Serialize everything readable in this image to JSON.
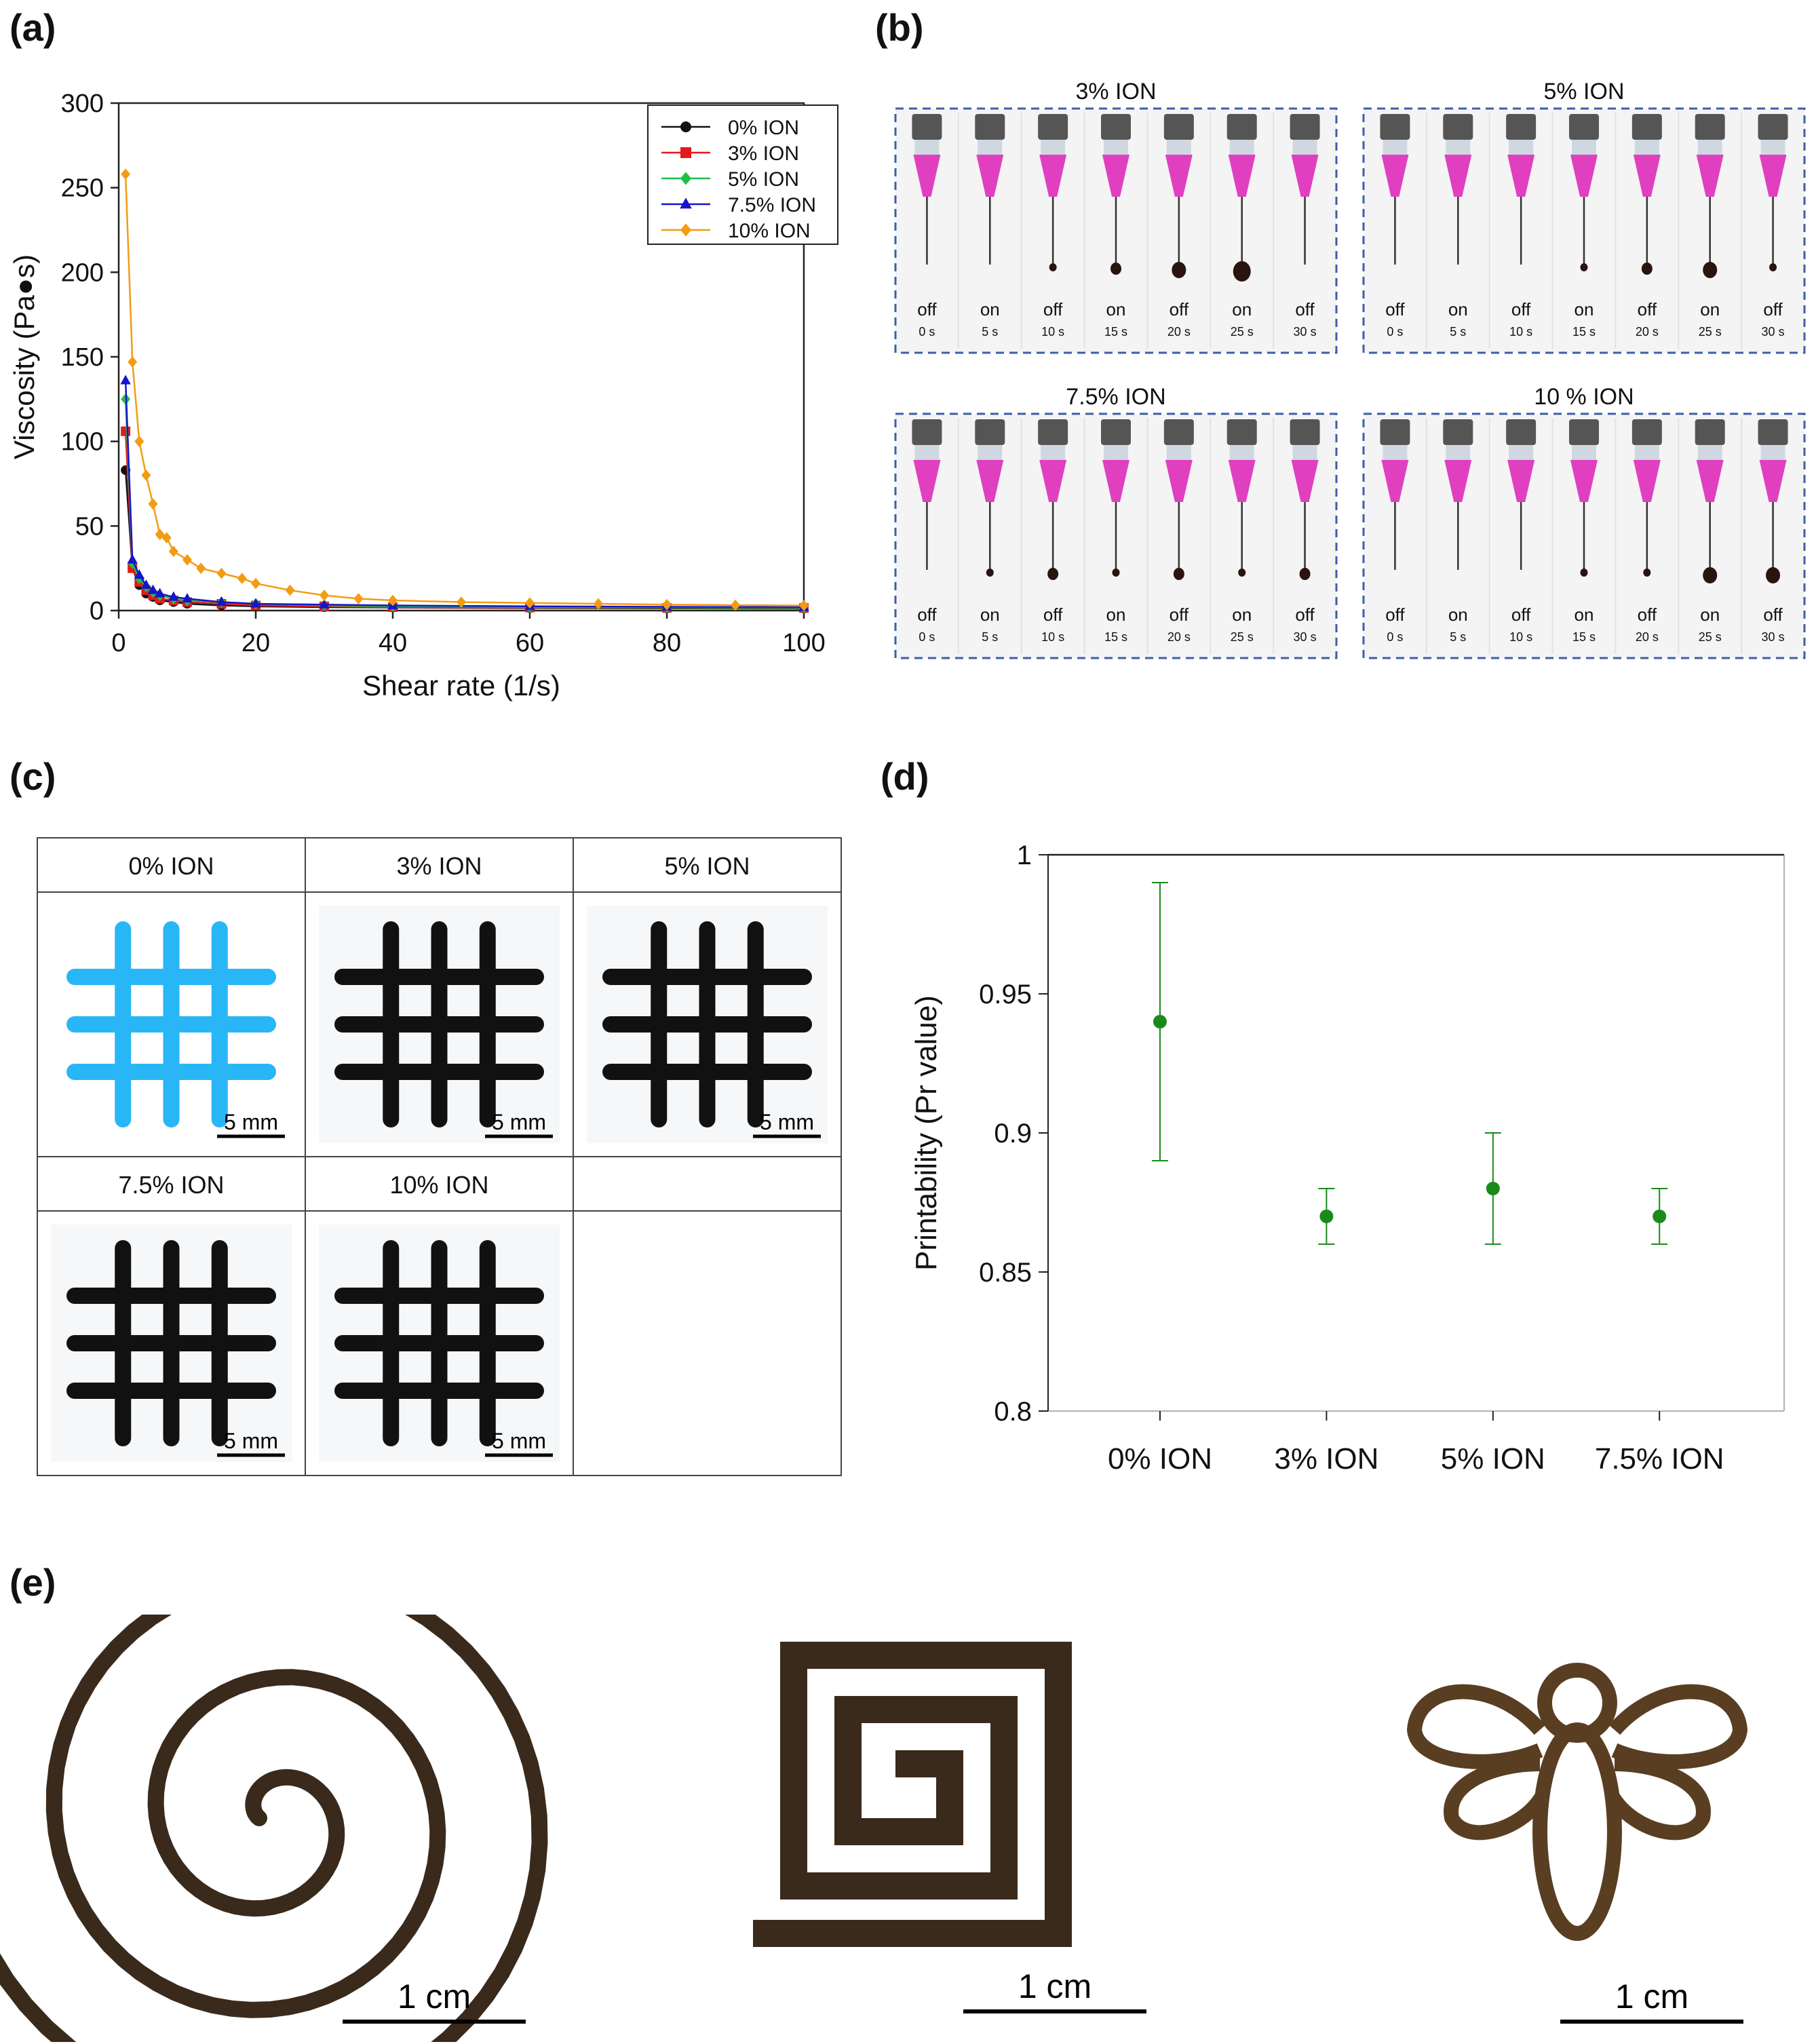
{
  "panels": {
    "a": "(a)",
    "b": "(b)",
    "c": "(c)",
    "d": "(d)",
    "e": "(e)"
  },
  "colors": {
    "s0": "#111111",
    "s3": "#e31a1c",
    "s5": "#1fbf4a",
    "s75": "#1515c8",
    "s10": "#f39c12",
    "printability": "#1a8a1a",
    "dash_box": "#3b5fa8",
    "liquid": "#e040c0",
    "grid_blue": "#29b6f6",
    "ink": "#111111"
  },
  "chart_data": [
    {
      "id": "a",
      "type": "line",
      "xlabel": "Shear rate (1/s)",
      "ylabel": "Viscosity (Pa●s)",
      "xlim": [
        0,
        100
      ],
      "ylim": [
        0,
        300
      ],
      "xticks": [
        0,
        20,
        40,
        60,
        80,
        100
      ],
      "yticks": [
        0,
        50,
        100,
        150,
        200,
        250,
        300
      ],
      "legend_position": "top-right",
      "series": [
        {
          "name": "0% ION",
          "marker": "circle",
          "color": "#111111",
          "x": [
            1,
            2,
            3,
            4,
            5,
            6,
            8,
            10,
            15,
            20,
            30,
            40,
            60,
            80,
            100
          ],
          "y": [
            83,
            25,
            15,
            10,
            8,
            6,
            5,
            4,
            3,
            2.5,
            2,
            1.8,
            1.5,
            1.3,
            1.2
          ]
        },
        {
          "name": "3% ION",
          "marker": "square",
          "color": "#e31a1c",
          "x": [
            1,
            2,
            3,
            4,
            5,
            6,
            8,
            10,
            15,
            20,
            30,
            40,
            60,
            80,
            100
          ],
          "y": [
            106,
            25,
            17,
            12,
            9,
            7,
            6,
            5,
            4,
            3,
            2.5,
            2,
            1.8,
            1.6,
            1.5
          ]
        },
        {
          "name": "5% ION",
          "marker": "diamond",
          "color": "#1fbf4a",
          "x": [
            1,
            2,
            3,
            4,
            5,
            6,
            8,
            10,
            15,
            20,
            30,
            40,
            60,
            80,
            100
          ],
          "y": [
            125,
            28,
            19,
            14,
            11,
            9,
            7,
            6,
            5,
            4,
            3,
            2.5,
            2,
            1.8,
            1.6
          ]
        },
        {
          "name": "7.5% ION",
          "marker": "triangle",
          "color": "#1515c8",
          "x": [
            1,
            2,
            3,
            4,
            5,
            6,
            8,
            10,
            15,
            20,
            30,
            40,
            60,
            80,
            100
          ],
          "y": [
            136,
            30,
            21,
            15,
            12,
            10,
            8,
            7,
            5,
            4,
            3.5,
            3,
            2.5,
            2.2,
            2
          ]
        },
        {
          "name": "10% ION",
          "marker": "diamond",
          "color": "#f39c12",
          "x": [
            1,
            2,
            3,
            4,
            5,
            6,
            7,
            8,
            10,
            12,
            15,
            18,
            20,
            25,
            30,
            35,
            40,
            50,
            60,
            70,
            80,
            90,
            100
          ],
          "y": [
            258,
            147,
            100,
            80,
            63,
            45,
            43,
            35,
            30,
            25,
            22,
            19,
            16,
            12,
            9,
            7,
            6,
            5,
            4.5,
            4,
            3.5,
            3.2,
            3
          ]
        }
      ]
    },
    {
      "id": "d",
      "type": "scatter",
      "ylabel": "Printability (Pr value)",
      "ylim": [
        0.8,
        1
      ],
      "yticks": [
        "0.8",
        "0.85",
        "0.9",
        "0.95",
        "1"
      ],
      "categories": [
        "0% ION",
        "3% ION",
        "5% ION",
        "7.5% ION"
      ],
      "values": [
        0.94,
        0.87,
        0.88,
        0.87
      ],
      "error_low": [
        0.89,
        0.86,
        0.86,
        0.86
      ],
      "error_high": [
        0.99,
        0.88,
        0.9,
        0.88
      ]
    }
  ],
  "panel_b": {
    "groups": [
      {
        "title": "3% ION",
        "states": [
          "off",
          "on",
          "off",
          "on",
          "off",
          "on",
          "off"
        ],
        "times": [
          "0 s",
          "5 s",
          "10 s",
          "15 s",
          "20 s",
          "25 s",
          "30 s"
        ],
        "drops": [
          0,
          0,
          1,
          2,
          3,
          4,
          0
        ]
      },
      {
        "title": "5% ION",
        "states": [
          "off",
          "on",
          "off",
          "on",
          "off",
          "on",
          "off"
        ],
        "times": [
          "0 s",
          "5 s",
          "10 s",
          "15 s",
          "20 s",
          "25 s",
          "30 s"
        ],
        "drops": [
          0,
          0,
          0,
          1,
          2,
          3,
          1
        ]
      },
      {
        "title": "7.5% ION",
        "states": [
          "off",
          "on",
          "off",
          "on",
          "off",
          "on",
          "off"
        ],
        "times": [
          "0 s",
          "5 s",
          "10 s",
          "15 s",
          "20 s",
          "25 s",
          "30 s"
        ],
        "drops": [
          0,
          1,
          2,
          1,
          2,
          1,
          2
        ]
      },
      {
        "title": "10 % ION",
        "states": [
          "off",
          "on",
          "off",
          "on",
          "off",
          "on",
          "off"
        ],
        "times": [
          "0 s",
          "5 s",
          "10 s",
          "15 s",
          "20 s",
          "25 s",
          "30 s"
        ],
        "drops": [
          0,
          0,
          0,
          1,
          1,
          3,
          3
        ]
      }
    ]
  },
  "panel_c": {
    "cells": [
      "0% ION",
      "3% ION",
      "5% ION",
      "7.5% ION",
      "10% ION"
    ],
    "scale": "5 mm"
  },
  "panel_e": {
    "shapes": [
      "spiral",
      "square-spiral",
      "dragonfly"
    ],
    "scale": "1 cm"
  }
}
